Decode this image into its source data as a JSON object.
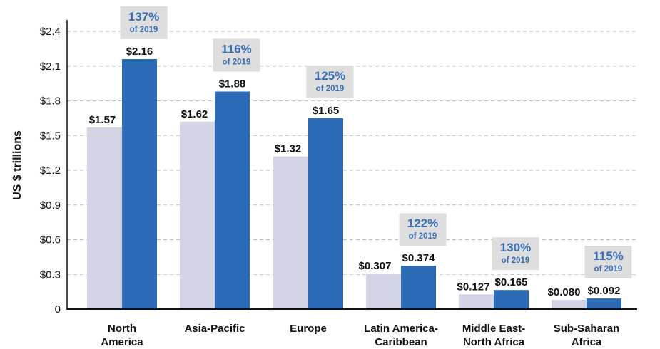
{
  "chart_data": {
    "type": "bar",
    "ylabel": "US $ trillions",
    "ylim": [
      0,
      2.4
    ],
    "yticks": [
      0,
      0.3,
      0.6,
      0.9,
      1.2,
      1.5,
      1.8,
      2.1,
      2.4
    ],
    "ytick_labels": [
      "0",
      "$0.3",
      "$0.6",
      "$0.9",
      "$1.2",
      "$1.5",
      "$1.8",
      "$2.1",
      "$2.4"
    ],
    "grid": "horizontal dashed",
    "categories": [
      [
        "North",
        "America"
      ],
      [
        "Asia-Pacific"
      ],
      [
        "Europe"
      ],
      [
        "Latin America-",
        "Caribbean"
      ],
      [
        "Middle East-",
        "North Africa"
      ],
      [
        "Sub-Saharan",
        "Africa"
      ]
    ],
    "series": [
      {
        "values": [
          1.57,
          1.62,
          1.32,
          0.307,
          0.127,
          0.08
        ],
        "labels": [
          "$1.57",
          "$1.62",
          "$1.32",
          "$0.307",
          "$0.127",
          "$0.080"
        ],
        "color": "#d3d3e6"
      },
      {
        "values": [
          2.16,
          1.88,
          1.65,
          0.374,
          0.165,
          0.092
        ],
        "labels": [
          "$2.16",
          "$1.88",
          "$1.65",
          "$0.374",
          "$0.165",
          "$0.092"
        ],
        "color": "#2c6bb6"
      }
    ],
    "annotations": {
      "percent_labels": [
        "137%",
        "116%",
        "125%",
        "122%",
        "130%",
        "115%"
      ],
      "percent_sub": "of 2019",
      "box_color": "#dedede",
      "text_color": "#3a6fb5"
    }
  }
}
